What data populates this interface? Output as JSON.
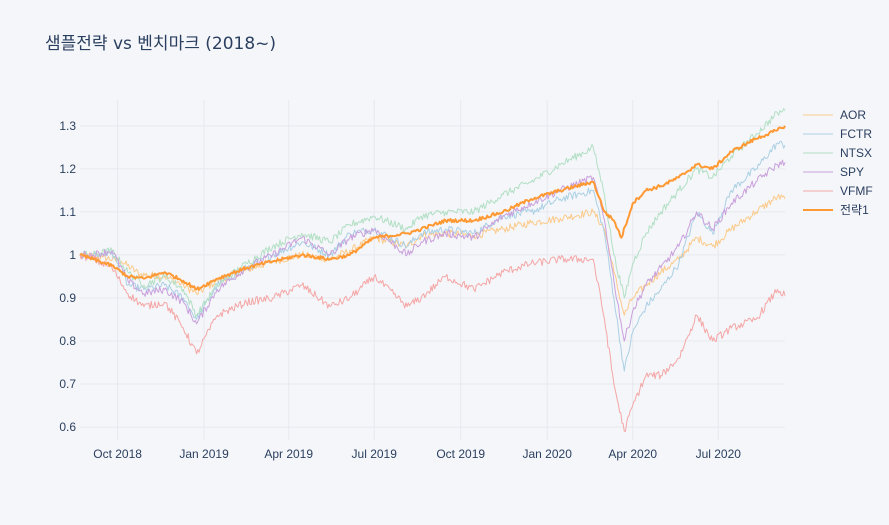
{
  "chart_data": {
    "type": "line",
    "title": "샘플전략 vs 벤치마크 (2018~)",
    "xlabel": "",
    "ylabel": "",
    "x_range": [
      "2018-08-22",
      "2020-09-10"
    ],
    "ylim": [
      0.57,
      1.36
    ],
    "grid": true,
    "legend_position": "right",
    "x_ticks": [
      {
        "date": "2018-10-01",
        "label": "Oct 2018"
      },
      {
        "date": "2019-01-01",
        "label": "Jan 2019"
      },
      {
        "date": "2019-04-01",
        "label": "Apr 2019"
      },
      {
        "date": "2019-07-01",
        "label": "Jul 2019"
      },
      {
        "date": "2019-10-01",
        "label": "Oct 2019"
      },
      {
        "date": "2020-01-01",
        "label": "Jan 2020"
      },
      {
        "date": "2020-04-01",
        "label": "Apr 2020"
      },
      {
        "date": "2020-07-01",
        "label": "Jul 2020"
      }
    ],
    "y_ticks": [
      {
        "value": 0.6,
        "label": "0.6"
      },
      {
        "value": 0.7,
        "label": "0.7"
      },
      {
        "value": 0.8,
        "label": "0.8"
      },
      {
        "value": 0.9,
        "label": "0.9"
      },
      {
        "value": 1.0,
        "label": "1"
      },
      {
        "value": 1.1,
        "label": "1.1"
      },
      {
        "value": 1.2,
        "label": "1.2"
      },
      {
        "value": 1.3,
        "label": "1.3"
      }
    ],
    "series": [
      {
        "name": "AOR",
        "color": "#fdbf6f",
        "opacity": 0.8,
        "width": 1,
        "x": [
          "2018-08-22",
          "2018-09-15",
          "2018-10-05",
          "2018-10-25",
          "2018-11-20",
          "2018-12-10",
          "2018-12-24",
          "2019-01-15",
          "2019-02-15",
          "2019-03-15",
          "2019-04-15",
          "2019-05-15",
          "2019-06-05",
          "2019-07-01",
          "2019-08-05",
          "2019-08-20",
          "2019-09-15",
          "2019-10-15",
          "2019-11-15",
          "2019-12-15",
          "2020-01-15",
          "2020-02-19",
          "2020-03-02",
          "2020-03-12",
          "2020-03-23",
          "2020-04-01",
          "2020-04-15",
          "2020-05-01",
          "2020-05-20",
          "2020-06-08",
          "2020-06-25",
          "2020-07-15",
          "2020-08-10",
          "2020-09-02",
          "2020-09-10"
        ],
        "y": [
          1.0,
          0.995,
          0.985,
          0.955,
          0.95,
          0.93,
          0.91,
          0.94,
          0.965,
          0.985,
          1.0,
          0.99,
          1.01,
          1.04,
          1.02,
          1.045,
          1.05,
          1.045,
          1.06,
          1.075,
          1.085,
          1.1,
          1.06,
          0.96,
          0.86,
          0.9,
          0.93,
          0.96,
          0.99,
          1.04,
          1.02,
          1.06,
          1.1,
          1.135,
          1.13
        ]
      },
      {
        "name": "FCTR",
        "color": "#a6cee3",
        "opacity": 0.95,
        "width": 1,
        "x": [
          "2018-08-22",
          "2018-09-05",
          "2018-09-25",
          "2018-10-12",
          "2018-10-29",
          "2018-11-20",
          "2018-12-10",
          "2018-12-24",
          "2019-01-15",
          "2019-02-15",
          "2019-03-15",
          "2019-04-15",
          "2019-05-15",
          "2019-06-05",
          "2019-07-01",
          "2019-08-05",
          "2019-08-20",
          "2019-09-15",
          "2019-10-15",
          "2019-11-15",
          "2019-12-15",
          "2020-01-15",
          "2020-02-19",
          "2020-03-02",
          "2020-03-12",
          "2020-03-23",
          "2020-04-01",
          "2020-04-15",
          "2020-05-01",
          "2020-05-20",
          "2020-06-08",
          "2020-06-25",
          "2020-07-15",
          "2020-08-10",
          "2020-09-02",
          "2020-09-10"
        ],
        "y": [
          1.0,
          1.0,
          1.005,
          0.93,
          0.92,
          0.93,
          0.9,
          0.85,
          0.93,
          0.97,
          1.0,
          1.03,
          1.0,
          1.05,
          1.06,
          1.02,
          1.05,
          1.06,
          1.05,
          1.09,
          1.1,
          1.13,
          1.15,
          1.05,
          0.9,
          0.73,
          0.82,
          0.88,
          0.92,
          0.98,
          1.1,
          1.05,
          1.15,
          1.2,
          1.26,
          1.255
        ]
      },
      {
        "name": "NTSX",
        "color": "#b2dfc5",
        "opacity": 1,
        "width": 1,
        "x": [
          "2018-08-22",
          "2018-09-05",
          "2018-09-25",
          "2018-10-12",
          "2018-10-29",
          "2018-11-20",
          "2018-12-10",
          "2018-12-24",
          "2019-01-15",
          "2019-02-15",
          "2019-03-15",
          "2019-04-15",
          "2019-05-15",
          "2019-06-05",
          "2019-07-01",
          "2019-08-05",
          "2019-08-20",
          "2019-09-15",
          "2019-10-15",
          "2019-11-15",
          "2019-12-15",
          "2020-01-15",
          "2020-02-19",
          "2020-03-02",
          "2020-03-12",
          "2020-03-23",
          "2020-04-01",
          "2020-04-15",
          "2020-05-01",
          "2020-05-20",
          "2020-06-08",
          "2020-06-25",
          "2020-07-15",
          "2020-08-10",
          "2020-09-02",
          "2020-09-10"
        ],
        "y": [
          1.0,
          1.0,
          1.01,
          0.96,
          0.93,
          0.95,
          0.92,
          0.86,
          0.93,
          0.98,
          1.02,
          1.05,
          1.03,
          1.07,
          1.09,
          1.06,
          1.09,
          1.1,
          1.1,
          1.14,
          1.17,
          1.21,
          1.25,
          1.14,
          1.0,
          0.9,
          0.98,
          1.05,
          1.1,
          1.15,
          1.2,
          1.18,
          1.23,
          1.28,
          1.33,
          1.335
        ]
      },
      {
        "name": "SPY",
        "color": "#c9a0dc",
        "opacity": 1,
        "width": 1,
        "x": [
          "2018-08-22",
          "2018-09-05",
          "2018-09-25",
          "2018-10-12",
          "2018-10-29",
          "2018-11-20",
          "2018-12-10",
          "2018-12-24",
          "2019-01-15",
          "2019-02-15",
          "2019-03-15",
          "2019-04-15",
          "2019-05-15",
          "2019-06-05",
          "2019-07-01",
          "2019-08-05",
          "2019-08-20",
          "2019-09-15",
          "2019-10-15",
          "2019-11-15",
          "2019-12-15",
          "2020-01-15",
          "2020-02-19",
          "2020-03-02",
          "2020-03-12",
          "2020-03-23",
          "2020-04-01",
          "2020-04-15",
          "2020-05-01",
          "2020-05-20",
          "2020-06-08",
          "2020-06-25",
          "2020-07-15",
          "2020-08-10",
          "2020-09-02",
          "2020-09-10"
        ],
        "y": [
          1.0,
          1.0,
          1.01,
          0.94,
          0.91,
          0.92,
          0.89,
          0.84,
          0.92,
          0.97,
          1.0,
          1.04,
          1.0,
          1.04,
          1.06,
          1.0,
          1.03,
          1.05,
          1.04,
          1.09,
          1.12,
          1.15,
          1.18,
          1.08,
          0.94,
          0.8,
          0.87,
          0.93,
          0.97,
          1.02,
          1.1,
          1.06,
          1.12,
          1.17,
          1.21,
          1.215
        ]
      },
      {
        "name": "VFMF",
        "color": "#f4a6a6",
        "opacity": 1,
        "width": 1,
        "x": [
          "2018-08-22",
          "2018-09-05",
          "2018-09-25",
          "2018-10-12",
          "2018-10-29",
          "2018-11-20",
          "2018-12-10",
          "2018-12-24",
          "2019-01-15",
          "2019-02-15",
          "2019-03-15",
          "2019-04-15",
          "2019-05-15",
          "2019-06-05",
          "2019-07-01",
          "2019-08-05",
          "2019-08-20",
          "2019-09-15",
          "2019-10-15",
          "2019-11-15",
          "2019-12-15",
          "2020-01-15",
          "2020-02-19",
          "2020-03-02",
          "2020-03-12",
          "2020-03-23",
          "2020-04-01",
          "2020-04-15",
          "2020-05-01",
          "2020-05-20",
          "2020-06-08",
          "2020-06-25",
          "2020-07-15",
          "2020-08-10",
          "2020-09-02",
          "2020-09-10"
        ],
        "y": [
          1.0,
          0.99,
          0.97,
          0.91,
          0.88,
          0.89,
          0.83,
          0.77,
          0.86,
          0.89,
          0.9,
          0.93,
          0.88,
          0.9,
          0.95,
          0.88,
          0.9,
          0.95,
          0.92,
          0.96,
          0.98,
          0.99,
          0.99,
          0.85,
          0.7,
          0.59,
          0.65,
          0.72,
          0.72,
          0.76,
          0.86,
          0.8,
          0.83,
          0.85,
          0.92,
          0.905
        ]
      },
      {
        "name": "전략1",
        "color": "#ff9933",
        "opacity": 1,
        "width": 2,
        "x": [
          "2018-08-22",
          "2018-09-05",
          "2018-09-25",
          "2018-10-12",
          "2018-10-29",
          "2018-11-20",
          "2018-12-10",
          "2018-12-24",
          "2019-01-15",
          "2019-02-15",
          "2019-03-15",
          "2019-04-15",
          "2019-05-15",
          "2019-06-05",
          "2019-07-01",
          "2019-08-05",
          "2019-08-20",
          "2019-09-15",
          "2019-10-15",
          "2019-11-15",
          "2019-12-15",
          "2020-01-15",
          "2020-02-19",
          "2020-03-02",
          "2020-03-12",
          "2020-03-20",
          "2020-04-01",
          "2020-04-15",
          "2020-05-01",
          "2020-05-20",
          "2020-06-08",
          "2020-06-25",
          "2020-07-15",
          "2020-08-10",
          "2020-09-02",
          "2020-09-10"
        ],
        "y": [
          1.0,
          0.99,
          0.975,
          0.95,
          0.945,
          0.96,
          0.94,
          0.92,
          0.945,
          0.97,
          0.985,
          1.0,
          0.99,
          1.0,
          1.04,
          1.05,
          1.06,
          1.08,
          1.08,
          1.1,
          1.13,
          1.15,
          1.17,
          1.1,
          1.08,
          1.04,
          1.12,
          1.15,
          1.16,
          1.18,
          1.21,
          1.2,
          1.24,
          1.27,
          1.29,
          1.3
        ]
      }
    ]
  }
}
